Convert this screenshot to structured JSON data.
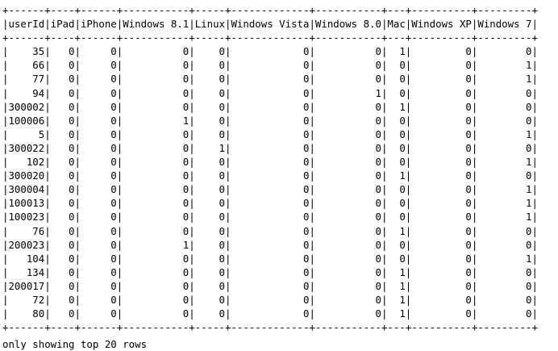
{
  "table": {
    "columns": [
      "userId",
      "iPad",
      "iPhone",
      "Windows 8.1",
      "Linux",
      "Windows Vista",
      "Windows 8.0",
      "Mac",
      "Windows XP",
      "Windows 7"
    ],
    "rows": [
      [
        "35",
        "0",
        "0",
        "0",
        "0",
        "0",
        "0",
        "1",
        "0",
        "0"
      ],
      [
        "66",
        "0",
        "0",
        "0",
        "0",
        "0",
        "0",
        "0",
        "0",
        "1"
      ],
      [
        "77",
        "0",
        "0",
        "0",
        "0",
        "0",
        "0",
        "0",
        "0",
        "1"
      ],
      [
        "94",
        "0",
        "0",
        "0",
        "0",
        "0",
        "1",
        "0",
        "0",
        "0"
      ],
      [
        "300002",
        "0",
        "0",
        "0",
        "0",
        "0",
        "0",
        "1",
        "0",
        "0"
      ],
      [
        "100006",
        "0",
        "0",
        "1",
        "0",
        "0",
        "0",
        "0",
        "0",
        "0"
      ],
      [
        "5",
        "0",
        "0",
        "0",
        "0",
        "0",
        "0",
        "0",
        "0",
        "1"
      ],
      [
        "300022",
        "0",
        "0",
        "0",
        "1",
        "0",
        "0",
        "0",
        "0",
        "0"
      ],
      [
        "102",
        "0",
        "0",
        "0",
        "0",
        "0",
        "0",
        "0",
        "0",
        "1"
      ],
      [
        "300020",
        "0",
        "0",
        "0",
        "0",
        "0",
        "0",
        "1",
        "0",
        "0"
      ],
      [
        "300004",
        "0",
        "0",
        "0",
        "0",
        "0",
        "0",
        "0",
        "0",
        "1"
      ],
      [
        "100013",
        "0",
        "0",
        "0",
        "0",
        "0",
        "0",
        "0",
        "0",
        "1"
      ],
      [
        "100023",
        "0",
        "0",
        "0",
        "0",
        "0",
        "0",
        "0",
        "0",
        "1"
      ],
      [
        "76",
        "0",
        "0",
        "0",
        "0",
        "0",
        "0",
        "1",
        "0",
        "0"
      ],
      [
        "200023",
        "0",
        "0",
        "1",
        "0",
        "0",
        "0",
        "0",
        "0",
        "0"
      ],
      [
        "104",
        "0",
        "0",
        "0",
        "0",
        "0",
        "0",
        "0",
        "0",
        "1"
      ],
      [
        "134",
        "0",
        "0",
        "0",
        "0",
        "0",
        "0",
        "1",
        "0",
        "0"
      ],
      [
        "200017",
        "0",
        "0",
        "0",
        "0",
        "0",
        "0",
        "1",
        "0",
        "0"
      ],
      [
        "72",
        "0",
        "0",
        "0",
        "0",
        "0",
        "0",
        "1",
        "0",
        "0"
      ],
      [
        "80",
        "0",
        "0",
        "0",
        "0",
        "0",
        "0",
        "1",
        "0",
        "0"
      ]
    ]
  },
  "footer": "only showing top 20 rows"
}
